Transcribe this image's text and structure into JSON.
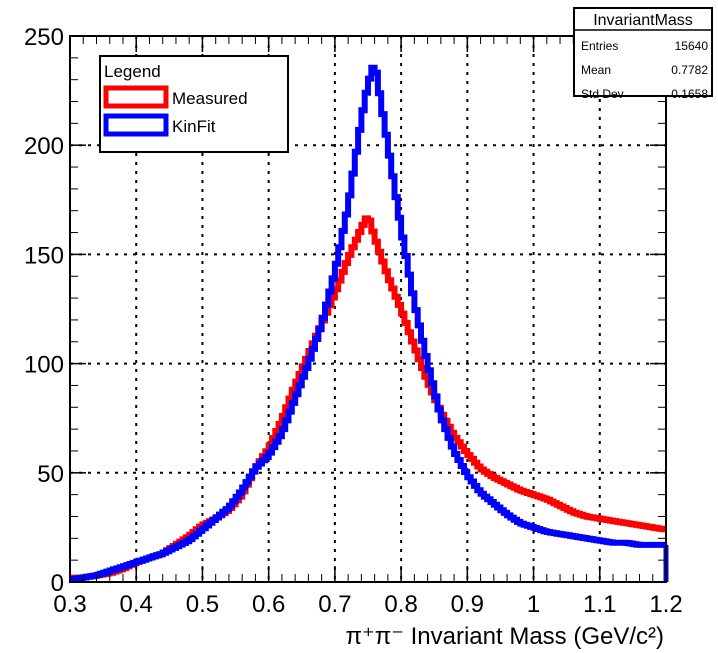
{
  "chart_data": {
    "type": "line",
    "xlabel": "π⁺π⁻ Invariant Mass (GeV/c²)",
    "ylabel": "",
    "xlim": [
      0.3,
      1.2
    ],
    "ylim": [
      0,
      250
    ],
    "x_ticks": [
      "0.3",
      "0.4",
      "0.5",
      "0.6",
      "0.7",
      "0.8",
      "0.9",
      "1",
      "1.1",
      "1.2"
    ],
    "y_ticks": [
      "0",
      "50",
      "100",
      "150",
      "200",
      "250"
    ],
    "grid": true,
    "legend": {
      "title": "Legend",
      "placement": "top-left",
      "entries": [
        "Measured",
        "KinFit"
      ]
    },
    "stats_box": {
      "title": "InvariantMass",
      "rows": [
        {
          "label": "Entries",
          "value": "15640"
        },
        {
          "label": "Mean",
          "value": "0.7782"
        },
        {
          "label": "Std Dev",
          "value": "0.1658"
        }
      ]
    },
    "series": [
      {
        "name": "Measured",
        "color": "#ff0000",
        "points": [
          [
            0.3,
            2
          ],
          [
            0.32,
            2
          ],
          [
            0.34,
            3
          ],
          [
            0.36,
            4
          ],
          [
            0.38,
            6
          ],
          [
            0.4,
            9
          ],
          [
            0.42,
            11
          ],
          [
            0.44,
            13
          ],
          [
            0.46,
            17
          ],
          [
            0.48,
            21
          ],
          [
            0.5,
            26
          ],
          [
            0.52,
            29
          ],
          [
            0.54,
            33
          ],
          [
            0.56,
            40
          ],
          [
            0.58,
            52
          ],
          [
            0.6,
            61
          ],
          [
            0.62,
            74
          ],
          [
            0.64,
            90
          ],
          [
            0.66,
            104
          ],
          [
            0.68,
            118
          ],
          [
            0.7,
            132
          ],
          [
            0.72,
            148
          ],
          [
            0.74,
            162
          ],
          [
            0.75,
            168
          ],
          [
            0.76,
            158
          ],
          [
            0.78,
            140
          ],
          [
            0.8,
            125
          ],
          [
            0.82,
            108
          ],
          [
            0.84,
            92
          ],
          [
            0.86,
            78
          ],
          [
            0.88,
            67
          ],
          [
            0.9,
            59
          ],
          [
            0.92,
            52
          ],
          [
            0.94,
            48
          ],
          [
            0.96,
            45
          ],
          [
            0.98,
            42
          ],
          [
            1.0,
            40
          ],
          [
            1.02,
            38
          ],
          [
            1.04,
            35
          ],
          [
            1.06,
            32
          ],
          [
            1.08,
            30
          ],
          [
            1.1,
            29
          ],
          [
            1.12,
            28
          ],
          [
            1.14,
            27
          ],
          [
            1.16,
            26
          ],
          [
            1.18,
            25
          ],
          [
            1.2,
            24
          ]
        ]
      },
      {
        "name": "KinFit",
        "color": "#0000ff",
        "points": [
          [
            0.3,
            1
          ],
          [
            0.32,
            2
          ],
          [
            0.34,
            3
          ],
          [
            0.36,
            5
          ],
          [
            0.38,
            7
          ],
          [
            0.4,
            9
          ],
          [
            0.42,
            11
          ],
          [
            0.44,
            13
          ],
          [
            0.46,
            16
          ],
          [
            0.48,
            19
          ],
          [
            0.5,
            24
          ],
          [
            0.52,
            29
          ],
          [
            0.54,
            34
          ],
          [
            0.56,
            42
          ],
          [
            0.58,
            52
          ],
          [
            0.6,
            58
          ],
          [
            0.62,
            68
          ],
          [
            0.64,
            84
          ],
          [
            0.66,
            100
          ],
          [
            0.68,
            118
          ],
          [
            0.7,
            142
          ],
          [
            0.72,
            172
          ],
          [
            0.74,
            212
          ],
          [
            0.75,
            228
          ],
          [
            0.76,
            238
          ],
          [
            0.78,
            200
          ],
          [
            0.8,
            162
          ],
          [
            0.82,
            128
          ],
          [
            0.84,
            100
          ],
          [
            0.86,
            76
          ],
          [
            0.88,
            60
          ],
          [
            0.9,
            49
          ],
          [
            0.92,
            41
          ],
          [
            0.94,
            36
          ],
          [
            0.96,
            31
          ],
          [
            0.98,
            27
          ],
          [
            1.0,
            25
          ],
          [
            1.02,
            23
          ],
          [
            1.04,
            22
          ],
          [
            1.06,
            21
          ],
          [
            1.08,
            20
          ],
          [
            1.1,
            19
          ],
          [
            1.12,
            18
          ],
          [
            1.14,
            18
          ],
          [
            1.16,
            17
          ],
          [
            1.18,
            17
          ],
          [
            1.2,
            17
          ]
        ]
      }
    ]
  }
}
